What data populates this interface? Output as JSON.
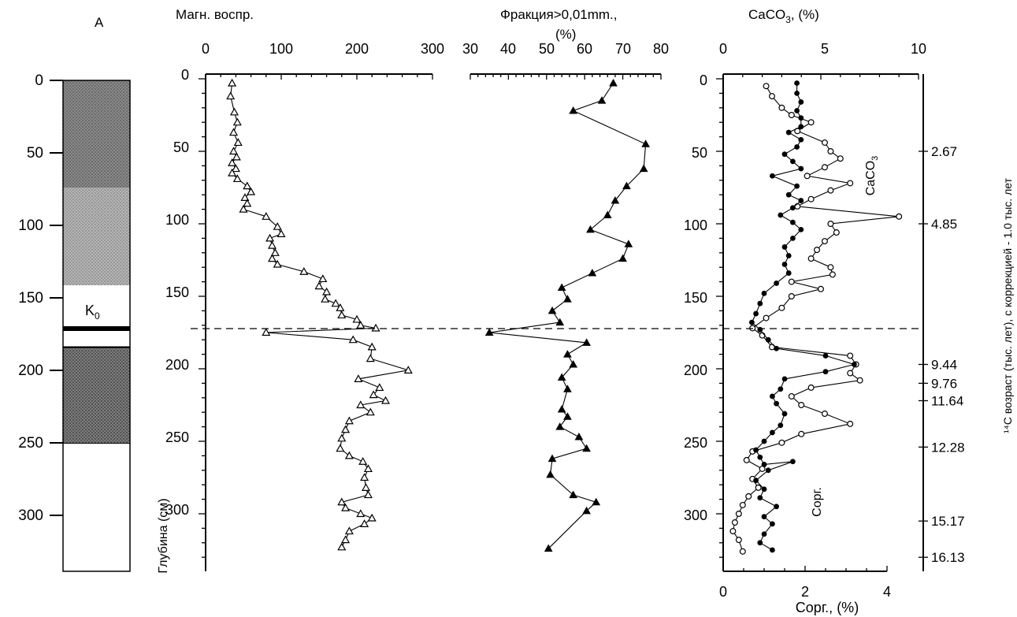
{
  "figure": {
    "panel_letter": "А",
    "depth_ticks": [
      "0",
      "50",
      "100",
      "150",
      "200",
      "250",
      "300"
    ],
    "marker_k0": "K",
    "marker_k0_sub": "0",
    "depth_axis_label": "Глубина (см)"
  },
  "chart_data": [
    {
      "type": "line",
      "title": "Магн. воспр.",
      "xlim": [
        0,
        300
      ],
      "ylim": [
        0,
        335
      ],
      "x_ticks": [
        "0",
        "100",
        "200",
        "300"
      ],
      "y_ticks": [
        "0",
        "50",
        "100",
        "150",
        "200",
        "250",
        "300"
      ],
      "marker": "open-triangle",
      "series": [
        {
          "points": [
            [
              35,
              3
            ],
            [
              33,
              12
            ],
            [
              38,
              23
            ],
            [
              42,
              30
            ],
            [
              37,
              37
            ],
            [
              43,
              44
            ],
            [
              37,
              50
            ],
            [
              41,
              54
            ],
            [
              35,
              58
            ],
            [
              40,
              62
            ],
            [
              35,
              65
            ],
            [
              42,
              69
            ],
            [
              55,
              74
            ],
            [
              60,
              78
            ],
            [
              52,
              82
            ],
            [
              55,
              86
            ],
            [
              50,
              90
            ],
            [
              80,
              95
            ],
            [
              95,
              102
            ],
            [
              100,
              107
            ],
            [
              85,
              110
            ],
            [
              88,
              115
            ],
            [
              92,
              120
            ],
            [
              88,
              124
            ],
            [
              95,
              128
            ],
            [
              130,
              133
            ],
            [
              155,
              138
            ],
            [
              150,
              143
            ],
            [
              160,
              147
            ],
            [
              158,
              152
            ],
            [
              172,
              155
            ],
            [
              178,
              158
            ],
            [
              180,
              163
            ],
            [
              200,
              166
            ],
            [
              205,
              170
            ],
            [
              225,
              172
            ],
            [
              80,
              175
            ],
            [
              195,
              180
            ],
            [
              220,
              185
            ],
            [
              218,
              193
            ],
            [
              268,
              201
            ],
            [
              202,
              207
            ],
            [
              230,
              213
            ],
            [
              222,
              218
            ],
            [
              238,
              222
            ],
            [
              205,
              225
            ],
            [
              218,
              230
            ],
            [
              190,
              236
            ],
            [
              185,
              242
            ],
            [
              180,
              248
            ],
            [
              178,
              255
            ],
            [
              190,
              260
            ],
            [
              208,
              264
            ],
            [
              215,
              269
            ],
            [
              210,
              275
            ],
            [
              212,
              282
            ],
            [
              215,
              287
            ],
            [
              180,
              292
            ],
            [
              185,
              296
            ],
            [
              205,
              300
            ],
            [
              220,
              303
            ],
            [
              210,
              307
            ],
            [
              190,
              312
            ],
            [
              185,
              318
            ],
            [
              180,
              323
            ]
          ]
        }
      ]
    },
    {
      "type": "line",
      "title": "Фракция>0,01mm.,",
      "subtitle": "(%)",
      "xlim": [
        30,
        80
      ],
      "x_ticks": [
        "30",
        "40",
        "50",
        "60",
        "70",
        "80"
      ],
      "marker": "filled-triangle",
      "series": [
        {
          "points": [
            [
              67.5,
              3
            ],
            [
              64.5,
              15
            ],
            [
              57,
              22
            ],
            [
              76,
              45
            ],
            [
              75.5,
              62
            ],
            [
              71,
              74
            ],
            [
              68,
              84
            ],
            [
              66,
              94
            ],
            [
              61.5,
              104
            ],
            [
              71.5,
              114
            ],
            [
              70,
              124
            ],
            [
              62,
              134
            ],
            [
              54,
              144
            ],
            [
              55.5,
              152
            ],
            [
              51.5,
              160
            ],
            [
              53.5,
              168
            ],
            [
              35,
              175
            ],
            [
              60.5,
              182
            ],
            [
              55.5,
              190
            ],
            [
              57,
              197
            ],
            [
              54,
              206
            ],
            [
              55.5,
              214
            ],
            [
              54,
              228
            ],
            [
              55.5,
              233
            ],
            [
              53.5,
              240
            ],
            [
              58.5,
              247
            ],
            [
              60.5,
              255
            ],
            [
              51.5,
              262
            ],
            [
              51,
              273
            ],
            [
              57,
              287
            ],
            [
              63,
              292
            ],
            [
              60.5,
              298
            ],
            [
              50.5,
              324
            ]
          ]
        }
      ]
    },
    {
      "type": "line",
      "title": "CaCO₃, (%)",
      "title_main": "CaCO",
      "title_sub": "3",
      "title_rest": ", (%)",
      "xlim": [
        0,
        10
      ],
      "x_ticks": [
        "0",
        "5",
        "10"
      ],
      "marker": "open-circle",
      "series_label_main": "CaCO",
      "series_label_sub": "3",
      "series": [
        {
          "name": "CaCO₃",
          "points": [
            [
              2.2,
              5
            ],
            [
              2.5,
              12
            ],
            [
              3.0,
              20
            ],
            [
              3.5,
              25
            ],
            [
              4.5,
              30
            ],
            [
              3.8,
              36
            ],
            [
              5.2,
              44
            ],
            [
              5.5,
              50
            ],
            [
              6.0,
              55
            ],
            [
              5.2,
              61
            ],
            [
              4.3,
              67
            ],
            [
              6.5,
              72
            ],
            [
              5.5,
              77
            ],
            [
              4.5,
              83
            ],
            [
              3.8,
              88
            ],
            [
              9.0,
              95
            ],
            [
              5.5,
              100
            ],
            [
              5.8,
              106
            ],
            [
              5.2,
              112
            ],
            [
              4.8,
              118
            ],
            [
              4.5,
              124
            ],
            [
              5.5,
              130
            ],
            [
              5.6,
              135
            ],
            [
              3.5,
              140
            ],
            [
              5.0,
              145
            ],
            [
              3.5,
              150
            ],
            [
              3.0,
              158
            ],
            [
              2.2,
              165
            ],
            [
              1.5,
              172
            ],
            [
              2.0,
              177
            ],
            [
              2.5,
              185
            ],
            [
              6.5,
              191
            ],
            [
              6.8,
              197
            ],
            [
              6.5,
              203
            ],
            [
              7.0,
              208
            ],
            [
              4.5,
              213
            ],
            [
              3.5,
              219
            ],
            [
              4.0,
              225
            ],
            [
              5.2,
              231
            ],
            [
              6.5,
              238
            ],
            [
              4.0,
              245
            ],
            [
              3.0,
              251
            ],
            [
              1.5,
              257
            ],
            [
              1.2,
              263
            ],
            [
              2.0,
              269
            ],
            [
              1.5,
              276
            ],
            [
              1.8,
              282
            ],
            [
              1.3,
              288
            ],
            [
              1.0,
              294
            ],
            [
              0.8,
              300
            ],
            [
              0.6,
              306
            ],
            [
              0.5,
              312
            ],
            [
              0.8,
              318
            ],
            [
              1.0,
              326
            ]
          ]
        }
      ]
    },
    {
      "type": "line",
      "xlabel": "Сорг., (%)",
      "xlabel_main": "Сорг., (%)",
      "xlim": [
        0,
        4
      ],
      "x_ticks": [
        "0",
        "2",
        "4"
      ],
      "marker": "filled-circle",
      "series_label": "Сорг.",
      "series": [
        {
          "name": "Сорг.",
          "points": [
            [
              1.8,
              3
            ],
            [
              1.8,
              10
            ],
            [
              1.9,
              16
            ],
            [
              1.8,
              22
            ],
            [
              1.9,
              27
            ],
            [
              1.9,
              33
            ],
            [
              1.6,
              37
            ],
            [
              1.9,
              42
            ],
            [
              1.8,
              47
            ],
            [
              1.5,
              52
            ],
            [
              1.7,
              57
            ],
            [
              1.9,
              62
            ],
            [
              1.2,
              67
            ],
            [
              1.8,
              74
            ],
            [
              1.6,
              80
            ],
            [
              1.9,
              84
            ],
            [
              1.7,
              89
            ],
            [
              1.4,
              94
            ],
            [
              1.7,
              99
            ],
            [
              1.9,
              104
            ],
            [
              1.7,
              110
            ],
            [
              1.5,
              116
            ],
            [
              1.6,
              122
            ],
            [
              1.5,
              128
            ],
            [
              1.6,
              134
            ],
            [
              1.3,
              141
            ],
            [
              1.0,
              148
            ],
            [
              0.9,
              155
            ],
            [
              0.8,
              162
            ],
            [
              0.7,
              168
            ],
            [
              0.9,
              173
            ],
            [
              1.1,
              180
            ],
            [
              1.3,
              186
            ],
            [
              2.5,
              191
            ],
            [
              3.2,
              197
            ],
            [
              2.5,
              202
            ],
            [
              1.5,
              207
            ],
            [
              1.4,
              214
            ],
            [
              1.2,
              219
            ],
            [
              1.3,
              224
            ],
            [
              1.5,
              231
            ],
            [
              1.4,
              239
            ],
            [
              1.2,
              244
            ],
            [
              1.0,
              250
            ],
            [
              0.8,
              256
            ],
            [
              0.9,
              261
            ],
            [
              1.0,
              266
            ],
            [
              1.7,
              264
            ],
            [
              1.1,
              270
            ],
            [
              0.8,
              277
            ],
            [
              1.0,
              283
            ],
            [
              0.9,
              289
            ],
            [
              1.3,
              295
            ],
            [
              1.0,
              302
            ],
            [
              1.2,
              307
            ],
            [
              1.0,
              314
            ],
            [
              0.9,
              320
            ],
            [
              1.2,
              325
            ]
          ]
        }
      ]
    }
  ],
  "age_scale": {
    "label": "¹⁴C возраст (тыс. лет), с коррекцией - 1.0 тыс. лет",
    "labels": [
      {
        "depth": 50,
        "text": "2.67"
      },
      {
        "depth": 100,
        "text": "4.85"
      },
      {
        "depth": 197,
        "text": "9.44"
      },
      {
        "depth": 210,
        "text": "9.76"
      },
      {
        "depth": 222,
        "text": "11.64"
      },
      {
        "depth": 254,
        "text": "12.28"
      },
      {
        "depth": 305,
        "text": "15.17"
      },
      {
        "depth": 330,
        "text": "16.13"
      }
    ]
  }
}
